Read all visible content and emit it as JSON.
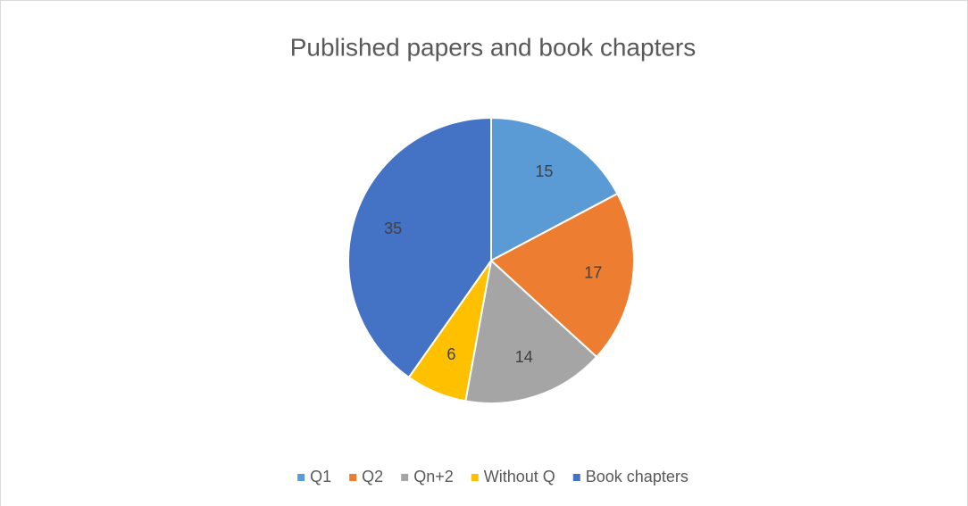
{
  "chart_data": {
    "type": "pie",
    "title": "Published papers and book chapters",
    "categories": [
      "Q1",
      "Q2",
      "Qn+2",
      "Without Q",
      "Book chapters"
    ],
    "values": [
      15,
      17,
      14,
      6,
      35
    ],
    "colors": [
      "#5b9bd5",
      "#ed7d31",
      "#a5a5a5",
      "#ffc000",
      "#4472c4"
    ],
    "legend": "bottom"
  }
}
